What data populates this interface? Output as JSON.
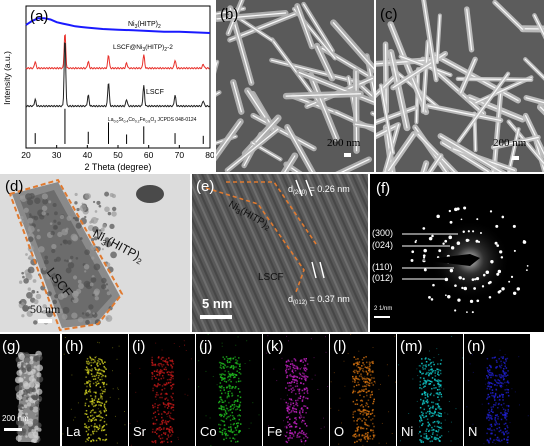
{
  "chart_data": {
    "type": "line",
    "panel_label": "(a)",
    "xlabel": "2 Theta (degree)",
    "ylabel": "Intensity (a.u.)",
    "xlim": [
      20,
      80
    ],
    "xticks": [
      20,
      30,
      40,
      50,
      60,
      70,
      80
    ],
    "series": [
      {
        "name": "Ni3(HITP)2",
        "color": "#1a1aff",
        "x": [
          20,
          22,
          24,
          26,
          28,
          30,
          32,
          34,
          36,
          38,
          40,
          45,
          50,
          55,
          60,
          65,
          70,
          75,
          80
        ],
        "y": [
          9.1,
          9.4,
          9.6,
          9.6,
          9.5,
          9.3,
          9.2,
          9.1,
          9.0,
          8.95,
          8.9,
          8.8,
          8.75,
          8.7,
          8.65,
          8.6,
          8.6,
          8.55,
          8.5
        ]
      },
      {
        "name": "LSCF@Ni3(HITP)2-2",
        "color": "#e8302a",
        "peaks": [
          [
            23.0,
            0.5
          ],
          [
            32.7,
            2.6
          ],
          [
            40.3,
            0.5
          ],
          [
            46.9,
            1.0
          ],
          [
            52.8,
            0.4
          ],
          [
            58.4,
            1.0
          ],
          [
            68.6,
            0.6
          ],
          [
            77.8,
            0.3
          ]
        ],
        "base": 5.9
      },
      {
        "name": "LSCF",
        "color": "#222222",
        "peaks": [
          [
            23.0,
            0.5
          ],
          [
            32.7,
            5.0
          ],
          [
            40.3,
            0.8
          ],
          [
            46.9,
            1.8
          ],
          [
            52.8,
            0.5
          ],
          [
            58.4,
            1.5
          ],
          [
            68.6,
            0.8
          ],
          [
            77.8,
            0.4
          ]
        ],
        "base": 3.1
      }
    ],
    "reference": {
      "name": "La0.6Sr0.4Co0.2Fe0.8O3 JCPDS 048-0124",
      "x": [
        23.0,
        32.7,
        40.3,
        46.9,
        52.8,
        58.4,
        68.6,
        77.8
      ],
      "h": [
        0.4,
        1.3,
        0.45,
        0.8,
        0.35,
        0.65,
        0.4,
        0.3
      ]
    }
  },
  "panels": {
    "b": {
      "label": "(b)",
      "scale": "200 nm"
    },
    "c": {
      "label": "(c)",
      "scale": "200 nm"
    },
    "d": {
      "label": "(d)",
      "scale": "50 nm",
      "ann1": "Ni3(HITP)2",
      "ann2": "LSCF"
    },
    "e": {
      "label": "(e)",
      "scale": "5 nm",
      "ann1": "Ni3(HITP)2",
      "ann2": "LSCF",
      "d1": "d(200) = 0.26 nm",
      "d2": "d(012) = 0.37 nm"
    },
    "f": {
      "label": "(f)",
      "scale": "2 1/nm",
      "rings": [
        "(300)",
        "(024)",
        "(110)",
        "(012)"
      ]
    },
    "g": {
      "label": "(g)",
      "scale": "200 nm"
    }
  },
  "maps": [
    {
      "label": "(h)",
      "element": "La",
      "color": "#c8c820"
    },
    {
      "label": "(i)",
      "element": "Sr",
      "color": "#c01818"
    },
    {
      "label": "(j)",
      "element": "Co",
      "color": "#20c020"
    },
    {
      "label": "(k)",
      "element": "Fe",
      "color": "#c020c0"
    },
    {
      "label": "(l)",
      "element": "O",
      "color": "#d07010"
    },
    {
      "label": "(m)",
      "element": "Ni",
      "color": "#10c8c8"
    },
    {
      "label": "(n)",
      "element": "N",
      "color": "#2020d0"
    }
  ]
}
